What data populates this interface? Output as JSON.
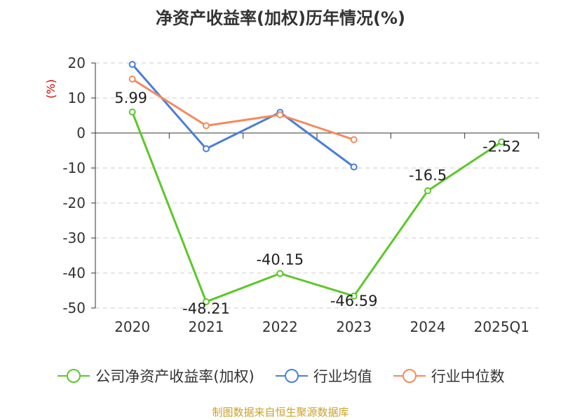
{
  "chart_data": {
    "type": "line",
    "title": "净资产收益率(加权)历年情况(%)",
    "ylabel": "(%)",
    "categories": [
      "2020",
      "2021",
      "2022",
      "2023",
      "2024",
      "2025Q1"
    ],
    "ylim": [
      -50,
      20
    ],
    "yticks": [
      20,
      10,
      0,
      -10,
      -20,
      -30,
      -40,
      -50
    ],
    "grid": true,
    "legend_position": "bottom",
    "series": [
      {
        "name": "公司净资产收益率(加权)",
        "color": "#5cc72a",
        "values": [
          5.99,
          -48.21,
          -40.15,
          -46.59,
          -16.5,
          -2.52
        ],
        "labels": [
          "5.99",
          "-48.21",
          "-40.15",
          "-46.59",
          "-16.5",
          "-2.52"
        ]
      },
      {
        "name": "行业均值",
        "color": "#4a7fd8",
        "values": [
          19.6,
          -4.5,
          5.9,
          -9.7,
          null,
          null
        ]
      },
      {
        "name": "行业中位数",
        "color": "#f58a5b",
        "values": [
          15.4,
          2.1,
          5.2,
          -1.9,
          null,
          null
        ]
      }
    ]
  },
  "footer": {
    "source": "制图数据来自恒生聚源数据库"
  }
}
